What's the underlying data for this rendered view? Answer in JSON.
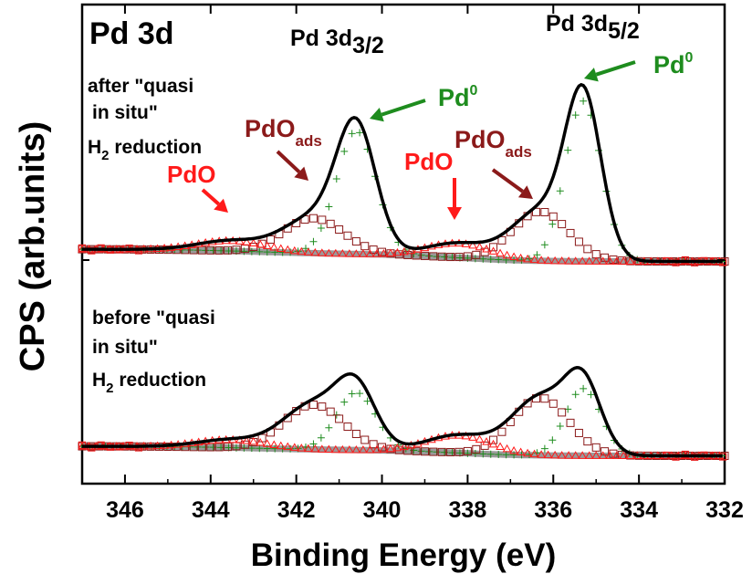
{
  "chart_data": {
    "type": "line",
    "title": "Pd 3d",
    "xlabel": "Binding Energy (eV)",
    "ylabel": "CPS (arb.units)",
    "xlim": [
      347,
      332
    ],
    "x_axis_reversed": true,
    "xticks": [
      346,
      344,
      342,
      340,
      338,
      336,
      334,
      332
    ],
    "xtick_labels": [
      "346",
      "344",
      "342",
      "340",
      "338",
      "336",
      "334",
      "332"
    ],
    "ylim": [
      0,
      2
    ],
    "yticks_labeled": false,
    "grid": false,
    "legend": "none",
    "colors": {
      "envelope": "#000000",
      "pd0": "#1e8c1e",
      "pdo_ads": "#8b1a1a",
      "pdo": "#ff1a1a",
      "background": "#9a9a9a",
      "raw_data": "#e61a1a"
    },
    "peak_labels": {
      "pd32": {
        "main": "Pd 3d",
        "sub": "3/2"
      },
      "pd52": {
        "main": "Pd 3d",
        "sub": "5/2"
      },
      "pd0": {
        "main": "Pd",
        "sup": "0"
      },
      "pdo_ads": {
        "main": "PdO",
        "sub": "ads"
      },
      "pdo": "PdO"
    },
    "panel_labels": {
      "after_line1": "after \"quasi",
      "after_line2": "in situ\"",
      "before_line1": "before \"quasi",
      "before_line2": "in situ\"",
      "h2": "H",
      "h2_sub": "2",
      "reduction": " reduction"
    },
    "spectra": [
      {
        "id": "after",
        "offset": 1.0,
        "baseline_low": 0.06,
        "baseline_high": 0.14,
        "background_step": 0.06,
        "components": [
          {
            "name": "Pd0",
            "role": "pd0",
            "positions": [
              340.6,
              335.3
            ],
            "amplitudes": [
              0.6,
              0.78
            ],
            "widths": [
              0.46,
              0.42
            ],
            "marker": "plus"
          },
          {
            "name": "PdOads",
            "role": "pdo_ads",
            "positions": [
              341.6,
              336.3
            ],
            "amplitudes": [
              0.17,
              0.24
            ],
            "widths": [
              0.7,
              0.66
            ],
            "marker": "square"
          },
          {
            "name": "PdO",
            "role": "pdo",
            "positions": [
              343.5,
              338.2
            ],
            "amplitudes": [
              0.05,
              0.07
            ],
            "widths": [
              0.8,
              0.75
            ],
            "marker": "triangle"
          }
        ]
      },
      {
        "id": "before",
        "offset": 0.0,
        "baseline_low": 0.06,
        "baseline_high": 0.13,
        "background_step": 0.06,
        "components": [
          {
            "name": "Pd0",
            "role": "pd0",
            "positions": [
              340.6,
              335.3
            ],
            "amplitudes": [
              0.36,
              0.42
            ],
            "widths": [
              0.46,
              0.42
            ],
            "marker": "plus"
          },
          {
            "name": "PdOads",
            "role": "pdo_ads",
            "positions": [
              341.6,
              336.3
            ],
            "amplitudes": [
              0.28,
              0.36
            ],
            "widths": [
              0.7,
              0.66
            ],
            "marker": "square"
          },
          {
            "name": "PdO",
            "role": "pdo",
            "positions": [
              343.5,
              338.2
            ],
            "amplitudes": [
              0.05,
              0.11
            ],
            "widths": [
              0.8,
              0.75
            ],
            "marker": "triangle"
          }
        ]
      }
    ]
  }
}
